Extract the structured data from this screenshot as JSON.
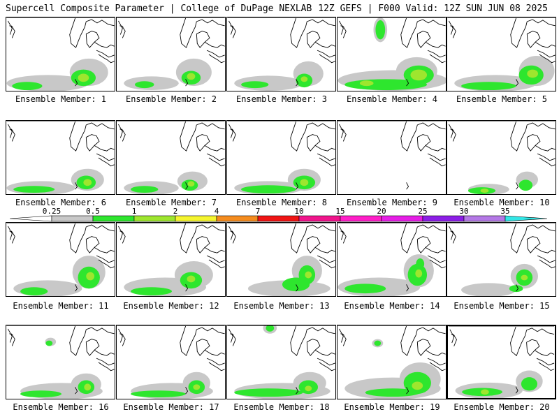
{
  "header": {
    "title": "Supercell Composite Parameter | College of DuPage NEXLAB",
    "run_info": "12Z GEFS | F000 Valid: 12Z SUN JUN 08 2025"
  },
  "member_prefix": "Ensemble Member:",
  "members": [
    {
      "label": "Ensemble Member: 1"
    },
    {
      "label": "Ensemble Member: 2"
    },
    {
      "label": "Ensemble Member: 3"
    },
    {
      "label": "Ensemble Member: 4"
    },
    {
      "label": "Ensemble Member: 5"
    },
    {
      "label": "Ensemble Member: 6"
    },
    {
      "label": "Ensemble Member: 7"
    },
    {
      "label": "Ensemble Member: 8"
    },
    {
      "label": "Ensemble Member: 9"
    },
    {
      "label": "Ensemble Member: 10"
    },
    {
      "label": "Ensemble Member: 11"
    },
    {
      "label": "Ensemble Member: 12"
    },
    {
      "label": "Ensemble Member: 13"
    },
    {
      "label": "Ensemble Member: 14"
    },
    {
      "label": "Ensemble Member: 15"
    },
    {
      "label": "Ensemble Member: 16"
    },
    {
      "label": "Ensemble Member: 17"
    },
    {
      "label": "Ensemble Member: 18"
    },
    {
      "label": "Ensemble Member: 19"
    },
    {
      "label": "Ensemble Member: 20"
    }
  ],
  "colorbar": {
    "thresholds": [
      "0.25",
      "0.5",
      "1",
      "2",
      "4",
      "7",
      "10",
      "15",
      "20",
      "25",
      "30",
      "35"
    ],
    "colors": [
      "#ffffff",
      "#c8c8c8",
      "#2ee62e",
      "#9ee62e",
      "#f5f52e",
      "#f58c1e",
      "#f01414",
      "#f0148c",
      "#ff1ec8",
      "#e61ee6",
      "#8c1ee6",
      "#b478e6",
      "#32e6e6"
    ]
  },
  "colors": {
    "low": "#c8c8c8",
    "mid": "#2ee62e",
    "high": "#9ee62e",
    "coast": "#000000"
  }
}
